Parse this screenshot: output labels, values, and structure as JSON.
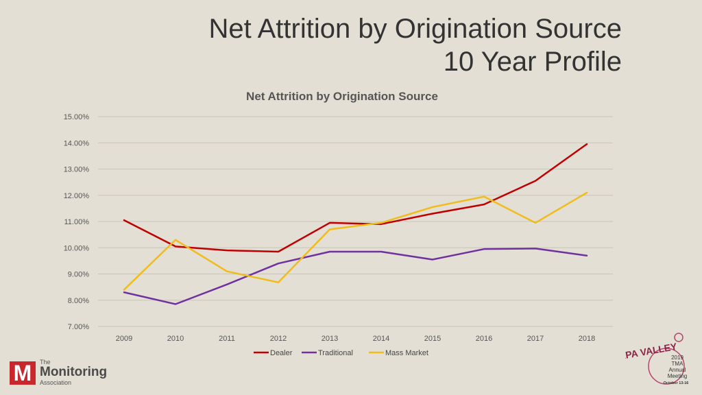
{
  "slide": {
    "title_line1": "Net Attrition by Origination Source",
    "title_line2": "10 Year Profile"
  },
  "chart_data": {
    "type": "line",
    "title": "Net Attrition by Origination Source",
    "categories": [
      "2009",
      "2010",
      "2011",
      "2012",
      "2013",
      "2014",
      "2015",
      "2016",
      "2017",
      "2018"
    ],
    "ylim": [
      7.0,
      15.0
    ],
    "yticks": [
      7,
      8,
      9,
      10,
      11,
      12,
      13,
      14,
      15
    ],
    "ytick_labels": [
      "7.00%",
      "8.00%",
      "9.00%",
      "10.00%",
      "11.00%",
      "12.00%",
      "13.00%",
      "14.00%",
      "15.00%"
    ],
    "grid": true,
    "legend_position": "bottom",
    "series": [
      {
        "name": "Dealer",
        "color": "#c00000",
        "values": [
          11.05,
          10.05,
          9.9,
          9.85,
          10.95,
          10.9,
          11.3,
          11.65,
          12.55,
          13.95
        ]
      },
      {
        "name": "Traditional",
        "color": "#7030a0",
        "values": [
          8.3,
          7.85,
          8.6,
          9.4,
          9.85,
          9.85,
          9.55,
          9.95,
          9.97,
          9.7
        ]
      },
      {
        "name": "Mass Market",
        "color": "#f0bc1a",
        "values": [
          8.4,
          10.3,
          9.1,
          8.68,
          10.7,
          10.95,
          11.55,
          11.95,
          10.95,
          12.1
        ]
      }
    ]
  },
  "logos": {
    "left_line1": "The",
    "left_line2": "Monitoring",
    "left_line3": "Association",
    "left_mark": "M",
    "right_badge": "NAPA VALLEY",
    "right_line1": "2019",
    "right_line2": "TMA",
    "right_line3": "Annual",
    "right_line4": "Meeting",
    "right_line5": "October 13-16"
  }
}
